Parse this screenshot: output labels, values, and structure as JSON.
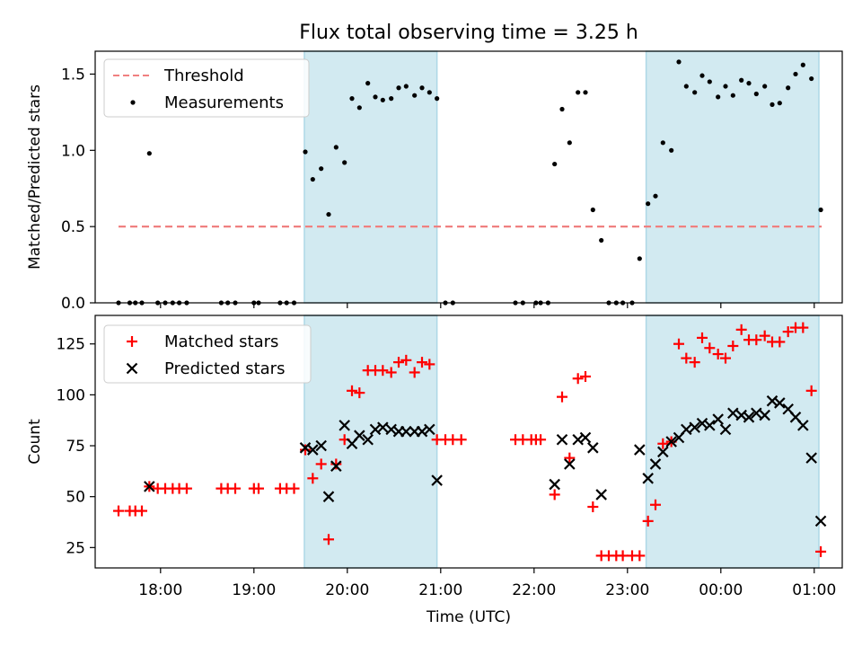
{
  "title": "Flux total observing time = 3.25 h",
  "colors": {
    "threshold": "#f08080",
    "measurement": "#000000",
    "matched": "#ff0000",
    "predicted": "#000000",
    "span": "#add8e6"
  },
  "chart_data": [
    {
      "type": "scatter",
      "ylabel": "Matched/Predicted stars",
      "xlim": [
        17.3,
        25.3
      ],
      "ylim": [
        0,
        1.65
      ],
      "yticks": [
        0,
        0.5,
        1.0,
        1.5
      ],
      "ytick_labels": [
        "0.0",
        "0.5",
        "1.0",
        "1.5"
      ],
      "legend_position": "upper-left",
      "shaded_spans": [
        [
          19.54,
          20.96
        ],
        [
          23.2,
          25.05
        ]
      ],
      "threshold": {
        "name": "Threshold",
        "y": 0.5,
        "x": [
          17.55,
          25.08
        ],
        "style": "dashed"
      },
      "series": [
        {
          "name": "Measurements",
          "marker": "dot",
          "points": [
            [
              17.55,
              0
            ],
            [
              17.67,
              0
            ],
            [
              17.73,
              0
            ],
            [
              17.8,
              0
            ],
            [
              17.88,
              0.98
            ],
            [
              17.97,
              0
            ],
            [
              18.05,
              0
            ],
            [
              18.13,
              0
            ],
            [
              18.2,
              0
            ],
            [
              18.28,
              0
            ],
            [
              18.65,
              0
            ],
            [
              18.72,
              0
            ],
            [
              18.8,
              0
            ],
            [
              19.0,
              0
            ],
            [
              19.05,
              0
            ],
            [
              19.28,
              0
            ],
            [
              19.35,
              0
            ],
            [
              19.43,
              0
            ],
            [
              19.55,
              0.99
            ],
            [
              19.63,
              0.81
            ],
            [
              19.72,
              0.88
            ],
            [
              19.8,
              0.58
            ],
            [
              19.88,
              1.02
            ],
            [
              19.97,
              0.92
            ],
            [
              20.05,
              1.34
            ],
            [
              20.13,
              1.28
            ],
            [
              20.22,
              1.44
            ],
            [
              20.3,
              1.35
            ],
            [
              20.38,
              1.33
            ],
            [
              20.47,
              1.34
            ],
            [
              20.55,
              1.41
            ],
            [
              20.63,
              1.42
            ],
            [
              20.72,
              1.36
            ],
            [
              20.8,
              1.41
            ],
            [
              20.88,
              1.38
            ],
            [
              20.96,
              1.34
            ],
            [
              21.05,
              0
            ],
            [
              21.13,
              0
            ],
            [
              21.8,
              0
            ],
            [
              21.88,
              0
            ],
            [
              22.02,
              0
            ],
            [
              22.07,
              0
            ],
            [
              22.15,
              0
            ],
            [
              22.22,
              0.91
            ],
            [
              22.3,
              1.27
            ],
            [
              22.38,
              1.05
            ],
            [
              22.47,
              1.38
            ],
            [
              22.55,
              1.38
            ],
            [
              22.63,
              0.61
            ],
            [
              22.72,
              0.41
            ],
            [
              22.8,
              0
            ],
            [
              22.88,
              0
            ],
            [
              22.95,
              0
            ],
            [
              23.05,
              0
            ],
            [
              23.13,
              0.29
            ],
            [
              23.22,
              0.65
            ],
            [
              23.3,
              0.7
            ],
            [
              23.38,
              1.05
            ],
            [
              23.47,
              1.0
            ],
            [
              23.55,
              1.58
            ],
            [
              23.63,
              1.42
            ],
            [
              23.72,
              1.38
            ],
            [
              23.8,
              1.49
            ],
            [
              23.88,
              1.45
            ],
            [
              23.97,
              1.35
            ],
            [
              24.05,
              1.42
            ],
            [
              24.13,
              1.36
            ],
            [
              24.22,
              1.46
            ],
            [
              24.3,
              1.44
            ],
            [
              24.38,
              1.37
            ],
            [
              24.47,
              1.42
            ],
            [
              24.55,
              1.3
            ],
            [
              24.63,
              1.31
            ],
            [
              24.72,
              1.41
            ],
            [
              24.8,
              1.5
            ],
            [
              24.88,
              1.56
            ],
            [
              24.97,
              1.47
            ],
            [
              25.07,
              0.61
            ]
          ]
        }
      ]
    },
    {
      "type": "scatter",
      "ylabel": "Count",
      "xlabel": "Time (UTC)",
      "xlim": [
        17.3,
        25.3
      ],
      "ylim": [
        15,
        139
      ],
      "yticks": [
        25,
        50,
        75,
        100,
        125
      ],
      "ytick_labels": [
        "25",
        "50",
        "75",
        "100",
        "125"
      ],
      "xticks": [
        18,
        19,
        20,
        21,
        22,
        23,
        24,
        25
      ],
      "xtick_labels": [
        "18:00",
        "19:00",
        "20:00",
        "21:00",
        "22:00",
        "23:00",
        "00:00",
        "01:00"
      ],
      "legend_position": "upper-left",
      "shaded_spans": [
        [
          19.54,
          20.96
        ],
        [
          23.2,
          25.05
        ]
      ],
      "series": [
        {
          "name": "Matched stars",
          "marker": "plus",
          "points": [
            [
              17.55,
              43
            ],
            [
              17.67,
              43
            ],
            [
              17.73,
              43
            ],
            [
              17.8,
              43
            ],
            [
              17.88,
              55
            ],
            [
              17.97,
              54
            ],
            [
              18.05,
              54
            ],
            [
              18.13,
              54
            ],
            [
              18.2,
              54
            ],
            [
              18.28,
              54
            ],
            [
              18.65,
              54
            ],
            [
              18.72,
              54
            ],
            [
              18.8,
              54
            ],
            [
              19.0,
              54
            ],
            [
              19.05,
              54
            ],
            [
              19.28,
              54
            ],
            [
              19.35,
              54
            ],
            [
              19.43,
              54
            ],
            [
              19.55,
              73
            ],
            [
              19.63,
              59
            ],
            [
              19.72,
              66
            ],
            [
              19.8,
              29
            ],
            [
              19.88,
              66
            ],
            [
              19.97,
              78
            ],
            [
              20.05,
              102
            ],
            [
              20.13,
              101
            ],
            [
              20.22,
              112
            ],
            [
              20.3,
              112
            ],
            [
              20.38,
              112
            ],
            [
              20.47,
              111
            ],
            [
              20.55,
              116
            ],
            [
              20.63,
              117
            ],
            [
              20.72,
              111
            ],
            [
              20.8,
              116
            ],
            [
              20.88,
              115
            ],
            [
              20.96,
              78
            ],
            [
              21.05,
              78
            ],
            [
              21.13,
              78
            ],
            [
              21.22,
              78
            ],
            [
              21.8,
              78
            ],
            [
              21.88,
              78
            ],
            [
              21.97,
              78
            ],
            [
              22.02,
              78
            ],
            [
              22.07,
              78
            ],
            [
              22.22,
              51
            ],
            [
              22.3,
              99
            ],
            [
              22.38,
              69
            ],
            [
              22.47,
              108
            ],
            [
              22.55,
              109
            ],
            [
              22.63,
              45
            ],
            [
              22.72,
              21
            ],
            [
              22.8,
              21
            ],
            [
              22.88,
              21
            ],
            [
              22.95,
              21
            ],
            [
              23.05,
              21
            ],
            [
              23.13,
              21
            ],
            [
              23.22,
              38
            ],
            [
              23.3,
              46
            ],
            [
              23.38,
              76
            ],
            [
              23.47,
              77
            ],
            [
              23.55,
              125
            ],
            [
              23.63,
              118
            ],
            [
              23.72,
              116
            ],
            [
              23.8,
              128
            ],
            [
              23.88,
              123
            ],
            [
              23.97,
              120
            ],
            [
              24.05,
              118
            ],
            [
              24.13,
              124
            ],
            [
              24.22,
              132
            ],
            [
              24.3,
              127
            ],
            [
              24.38,
              127
            ],
            [
              24.47,
              129
            ],
            [
              24.55,
              126
            ],
            [
              24.63,
              126
            ],
            [
              24.72,
              131
            ],
            [
              24.8,
              133
            ],
            [
              24.88,
              133
            ],
            [
              24.97,
              102
            ],
            [
              25.07,
              23
            ]
          ]
        },
        {
          "name": "Predicted stars",
          "marker": "x",
          "points": [
            [
              17.88,
              55
            ],
            [
              19.55,
              74
            ],
            [
              19.63,
              73
            ],
            [
              19.72,
              75
            ],
            [
              19.8,
              50
            ],
            [
              19.88,
              65
            ],
            [
              19.97,
              85
            ],
            [
              20.05,
              76
            ],
            [
              20.13,
              80
            ],
            [
              20.22,
              78
            ],
            [
              20.3,
              83
            ],
            [
              20.38,
              84
            ],
            [
              20.47,
              83
            ],
            [
              20.55,
              82
            ],
            [
              20.63,
              82
            ],
            [
              20.72,
              82
            ],
            [
              20.8,
              82
            ],
            [
              20.88,
              83
            ],
            [
              20.96,
              58
            ],
            [
              22.22,
              56
            ],
            [
              22.3,
              78
            ],
            [
              22.38,
              66
            ],
            [
              22.47,
              78
            ],
            [
              22.55,
              79
            ],
            [
              22.63,
              74
            ],
            [
              22.72,
              51
            ],
            [
              23.13,
              73
            ],
            [
              23.22,
              59
            ],
            [
              23.3,
              66
            ],
            [
              23.38,
              72
            ],
            [
              23.47,
              77
            ],
            [
              23.55,
              79
            ],
            [
              23.63,
              83
            ],
            [
              23.72,
              84
            ],
            [
              23.8,
              86
            ],
            [
              23.88,
              85
            ],
            [
              23.97,
              88
            ],
            [
              24.05,
              83
            ],
            [
              24.13,
              91
            ],
            [
              24.22,
              90
            ],
            [
              24.3,
              89
            ],
            [
              24.38,
              91
            ],
            [
              24.47,
              90
            ],
            [
              24.55,
              97
            ],
            [
              24.63,
              96
            ],
            [
              24.72,
              93
            ],
            [
              24.8,
              89
            ],
            [
              24.88,
              85
            ],
            [
              24.97,
              69
            ],
            [
              25.07,
              38
            ]
          ]
        }
      ]
    }
  ]
}
